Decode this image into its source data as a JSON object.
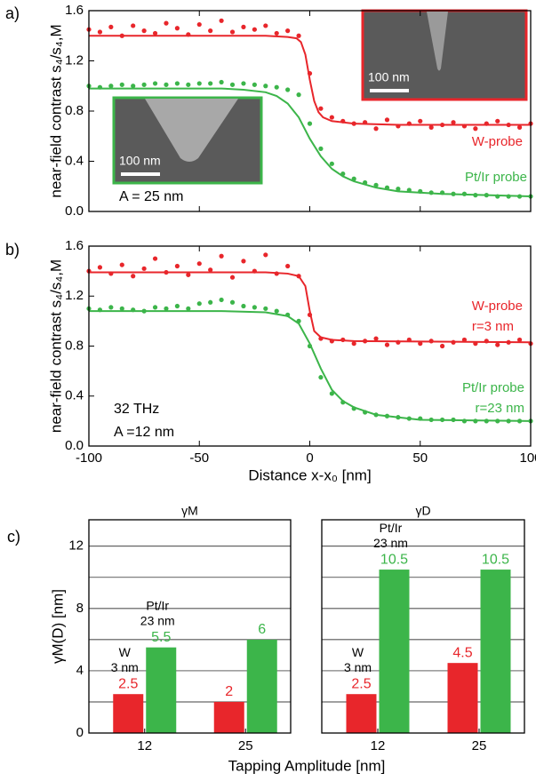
{
  "chart_data": [
    {
      "type": "scatter",
      "label": "a)",
      "ylabel": "near-field contrast s₄/s₄,M",
      "xlim": [
        -100,
        100
      ],
      "xticks": [
        -100,
        -50,
        0,
        50,
        100
      ],
      "xtick_labels": false,
      "ylim": [
        0,
        1.6
      ],
      "yticks": [
        {
          "value": 0,
          "label": "0.0"
        },
        0.4,
        0.8,
        1.2,
        1.6
      ],
      "annotations": [
        "A = 25 nm"
      ],
      "insets": [
        {
          "scale_label": "100 nm",
          "color": "#e8262b"
        },
        {
          "scale_label": "100 nm",
          "color": "#3cb54a"
        }
      ],
      "series": [
        {
          "name": "W-probe",
          "color": "#e8262b",
          "x": [
            -100,
            -95,
            -90,
            -85,
            -80,
            -75,
            -70,
            -65,
            -60,
            -55,
            -50,
            -45,
            -40,
            -35,
            -30,
            -25,
            -20,
            -15,
            -10,
            -5,
            0,
            5,
            10,
            15,
            20,
            25,
            30,
            35,
            40,
            45,
            50,
            55,
            60,
            65,
            70,
            75,
            80,
            85,
            90,
            95,
            100
          ],
          "values": [
            1.45,
            1.43,
            1.47,
            1.4,
            1.48,
            1.44,
            1.42,
            1.5,
            1.46,
            1.41,
            1.49,
            1.44,
            1.52,
            1.43,
            1.47,
            1.45,
            1.48,
            1.42,
            1.44,
            1.4,
            1.1,
            0.82,
            0.75,
            0.72,
            0.7,
            0.71,
            0.66,
            0.73,
            0.68,
            0.7,
            0.72,
            0.67,
            0.69,
            0.71,
            0.68,
            0.66,
            0.7,
            0.72,
            0.69,
            0.67,
            0.7
          ],
          "fit_x": [
            -100,
            -20,
            -10,
            -6,
            -4,
            -2,
            0,
            2,
            4,
            6,
            10,
            20,
            40,
            100
          ],
          "fit": [
            1.4,
            1.4,
            1.39,
            1.38,
            1.35,
            1.25,
            1.05,
            0.88,
            0.79,
            0.75,
            0.72,
            0.7,
            0.69,
            0.69
          ]
        },
        {
          "name": "Pt/Ir probe",
          "color": "#3cb54a",
          "x": [
            -100,
            -95,
            -90,
            -85,
            -80,
            -75,
            -70,
            -65,
            -60,
            -55,
            -50,
            -45,
            -40,
            -35,
            -30,
            -25,
            -20,
            -15,
            -10,
            -5,
            0,
            5,
            10,
            15,
            20,
            25,
            30,
            35,
            40,
            45,
            50,
            55,
            60,
            65,
            70,
            75,
            80,
            85,
            90,
            95,
            100
          ],
          "values": [
            1.0,
            0.99,
            1.0,
            1.01,
            1.0,
            1.01,
            1.02,
            1.01,
            1.02,
            1.01,
            1.02,
            1.02,
            1.03,
            1.01,
            1.02,
            1.01,
            1.0,
            0.99,
            0.97,
            0.93,
            0.7,
            0.5,
            0.38,
            0.3,
            0.26,
            0.23,
            0.21,
            0.19,
            0.18,
            0.17,
            0.16,
            0.15,
            0.15,
            0.14,
            0.14,
            0.13,
            0.13,
            0.12,
            0.12,
            0.12,
            0.12
          ],
          "fit_x": [
            -100,
            -40,
            -30,
            -20,
            -15,
            -10,
            -5,
            0,
            5,
            10,
            15,
            20,
            30,
            40,
            60,
            100
          ],
          "fit": [
            0.98,
            0.98,
            0.97,
            0.95,
            0.92,
            0.86,
            0.75,
            0.58,
            0.44,
            0.34,
            0.28,
            0.24,
            0.19,
            0.16,
            0.14,
            0.12
          ]
        }
      ]
    },
    {
      "type": "scatter",
      "label": "b)",
      "ylabel": "near-field contrast s₄/s₄,M",
      "xlabel": "Distance x-x₀ [nm]",
      "xlim": [
        -100,
        100
      ],
      "xticks": [
        -100,
        -50,
        0,
        50,
        100
      ],
      "ylim": [
        0,
        1.6
      ],
      "yticks": [
        {
          "value": 0,
          "label": "0.0"
        },
        0.4,
        0.8,
        1.2,
        1.6
      ],
      "annotations": [
        "32 THz",
        "A =12 nm"
      ],
      "series": [
        {
          "name": "W-probe",
          "radius": "r=3 nm",
          "color": "#e8262b",
          "x": [
            -100,
            -95,
            -90,
            -85,
            -80,
            -75,
            -70,
            -65,
            -60,
            -55,
            -50,
            -45,
            -40,
            -35,
            -30,
            -25,
            -20,
            -15,
            -10,
            -5,
            0,
            5,
            10,
            15,
            20,
            25,
            30,
            35,
            40,
            45,
            50,
            55,
            60,
            65,
            70,
            75,
            80,
            85,
            90,
            95,
            100
          ],
          "values": [
            1.4,
            1.43,
            1.38,
            1.45,
            1.36,
            1.42,
            1.5,
            1.39,
            1.44,
            1.37,
            1.46,
            1.41,
            1.52,
            1.35,
            1.48,
            1.4,
            1.53,
            1.38,
            1.44,
            1.36,
            1.05,
            0.86,
            0.84,
            0.85,
            0.82,
            0.84,
            0.86,
            0.81,
            0.83,
            0.85,
            0.82,
            0.84,
            0.8,
            0.83,
            0.85,
            0.82,
            0.84,
            0.81,
            0.83,
            0.85,
            0.82
          ],
          "fit_x": [
            -100,
            -20,
            -10,
            -5,
            -2,
            0,
            2,
            5,
            10,
            20,
            100
          ],
          "fit": [
            1.39,
            1.39,
            1.38,
            1.36,
            1.28,
            1.08,
            0.92,
            0.87,
            0.85,
            0.84,
            0.83
          ]
        },
        {
          "name": "Pt/Ir probe",
          "radius": "r=23 nm",
          "color": "#3cb54a",
          "x": [
            -100,
            -95,
            -90,
            -85,
            -80,
            -75,
            -70,
            -65,
            -60,
            -55,
            -50,
            -45,
            -40,
            -35,
            -30,
            -25,
            -20,
            -15,
            -10,
            -5,
            0,
            5,
            10,
            15,
            20,
            25,
            30,
            35,
            40,
            45,
            50,
            55,
            60,
            65,
            70,
            75,
            80,
            85,
            90,
            95,
            100
          ],
          "values": [
            1.1,
            1.09,
            1.11,
            1.1,
            1.09,
            1.08,
            1.11,
            1.1,
            1.12,
            1.1,
            1.14,
            1.15,
            1.17,
            1.15,
            1.12,
            1.11,
            1.1,
            1.08,
            1.05,
            1.0,
            0.8,
            0.55,
            0.42,
            0.35,
            0.3,
            0.27,
            0.25,
            0.24,
            0.23,
            0.22,
            0.22,
            0.21,
            0.21,
            0.21,
            0.2,
            0.2,
            0.2,
            0.2,
            0.2,
            0.2,
            0.2
          ],
          "fit_x": [
            -100,
            -40,
            -20,
            -10,
            -5,
            0,
            5,
            10,
            15,
            20,
            30,
            50,
            100
          ],
          "fit": [
            1.08,
            1.08,
            1.07,
            1.04,
            0.98,
            0.82,
            0.62,
            0.45,
            0.36,
            0.31,
            0.25,
            0.21,
            0.2
          ]
        }
      ]
    },
    {
      "type": "bar",
      "label": "c)",
      "title": "γM",
      "ylabel": "γM(D) [nm]",
      "xlabel": "Tapping Amplitude [nm]",
      "categories": [
        "12",
        "25"
      ],
      "ylim": [
        0,
        13.7
      ],
      "yticks": [
        0,
        4,
        8,
        12
      ],
      "minor_yticks": [
        2,
        6,
        10
      ],
      "grid": true,
      "series": [
        {
          "name": "W",
          "radius": "3 nm",
          "color": "#e8262b",
          "values": [
            2.5,
            2
          ]
        },
        {
          "name": "Pt/Ir",
          "radius": "23 nm",
          "color": "#3cb54a",
          "values": [
            5.5,
            6
          ]
        }
      ]
    },
    {
      "type": "bar",
      "title": "γD",
      "ytick_labels": false,
      "categories": [
        "12",
        "25"
      ],
      "ylim": [
        0,
        13.7
      ],
      "yticks": [
        0,
        4,
        8,
        12
      ],
      "minor_yticks": [
        2,
        6,
        10
      ],
      "grid": true,
      "series": [
        {
          "name": "W",
          "radius": "3 nm",
          "color": "#e8262b",
          "values": [
            2.5,
            4.5
          ]
        },
        {
          "name": "Pt/Ir",
          "radius": "23 nm",
          "color": "#3cb54a",
          "values": [
            10.5,
            10.5
          ]
        }
      ]
    }
  ]
}
